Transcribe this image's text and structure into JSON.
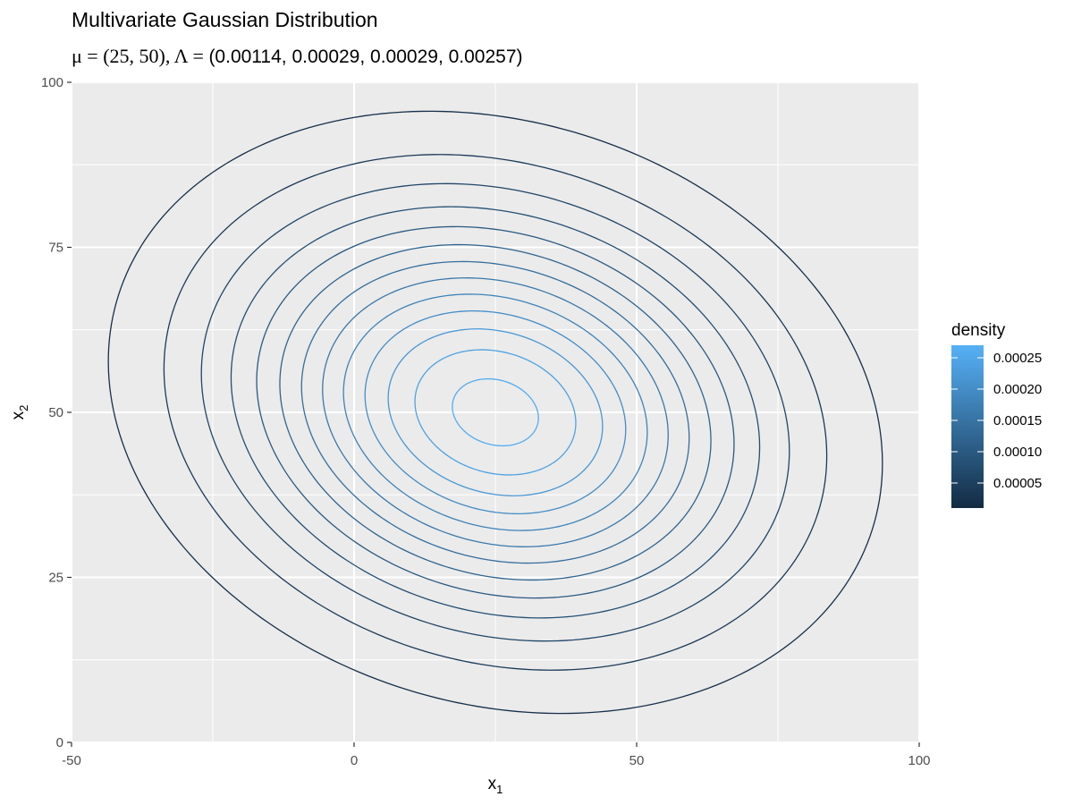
{
  "chart_data": {
    "type": "contour",
    "title": "Multivariate Gaussian Distribution",
    "subtitle_prefix": "μ = (25, 50), Λ = ",
    "subtitle_lambda": "(0.00114, 0.00029, 0.00029, 0.00257)",
    "xlabel": "x",
    "xlabel_sub": "1",
    "ylabel": "x",
    "ylabel_sub": "2",
    "xlim": [
      -50,
      100
    ],
    "ylim": [
      0,
      100
    ],
    "x_ticks": [
      -50,
      0,
      50,
      100
    ],
    "x_tick_labels": [
      "-50",
      "0",
      "50",
      "100"
    ],
    "y_ticks": [
      0,
      25,
      50,
      75,
      100
    ],
    "y_tick_labels": [
      "0",
      "25",
      "50",
      "75",
      "100"
    ],
    "grid": true,
    "mean": [
      25,
      50
    ],
    "precision": [
      [
        0.00114,
        0.00029
      ],
      [
        0.00029,
        0.00257
      ]
    ],
    "contour_levels": [
      2e-05,
      4e-05,
      6e-05,
      8e-05,
      0.0001,
      0.00012,
      0.00014,
      0.00016,
      0.00018,
      0.0002,
      0.00022,
      0.00024,
      0.00026
    ],
    "legend": {
      "title": "density",
      "position": "right",
      "range": [
        1e-05,
        0.00027
      ],
      "breaks": [
        0.00025,
        0.0002,
        0.00015,
        0.0001,
        5e-05
      ],
      "break_labels": [
        "0.00025",
        "0.00020",
        "0.00015",
        "0.00010",
        "0.00005"
      ],
      "color_low": "#132B43",
      "color_high": "#56B1F7"
    },
    "panel_background": "#EBEBEB",
    "grid_color": "#FFFFFF"
  }
}
